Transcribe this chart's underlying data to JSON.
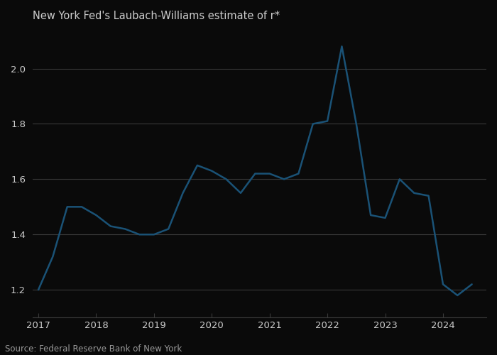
{
  "title": "New York Fed's Laubach-Williams estimate of r*",
  "source": "Source: Federal Reserve Bank of New York",
  "line_color": "#1a5276",
  "background_color": "#0a0a0a",
  "plot_bg_color": "#0a0a0a",
  "grid_color": "#3a3a3a",
  "text_color": "#cccccc",
  "title_color": "#cccccc",
  "source_color": "#999999",
  "x_values": [
    2017.0,
    2017.25,
    2017.5,
    2017.75,
    2018.0,
    2018.25,
    2018.5,
    2018.75,
    2019.0,
    2019.25,
    2019.5,
    2019.75,
    2020.0,
    2020.25,
    2020.5,
    2020.75,
    2021.0,
    2021.25,
    2021.5,
    2021.75,
    2022.0,
    2022.25,
    2022.5,
    2022.75,
    2023.0,
    2023.25,
    2023.5,
    2023.75,
    2024.0,
    2024.25,
    2024.5
  ],
  "y_values": [
    1.2,
    1.32,
    1.5,
    1.5,
    1.47,
    1.43,
    1.42,
    1.4,
    1.4,
    1.42,
    1.55,
    1.65,
    1.63,
    1.6,
    1.55,
    1.62,
    1.62,
    1.6,
    1.62,
    1.8,
    1.81,
    2.08,
    1.8,
    1.47,
    1.46,
    1.6,
    1.55,
    1.54,
    1.22,
    1.18,
    1.22
  ],
  "ylim": [
    1.1,
    2.15
  ],
  "yticks": [
    1.2,
    1.4,
    1.6,
    1.8,
    2.0
  ],
  "xlim": [
    2016.9,
    2024.75
  ],
  "xticks": [
    2017,
    2018,
    2019,
    2020,
    2021,
    2022,
    2023,
    2024
  ],
  "line_width": 1.8,
  "title_fontsize": 10.5,
  "source_fontsize": 8.5,
  "tick_fontsize": 9.5
}
